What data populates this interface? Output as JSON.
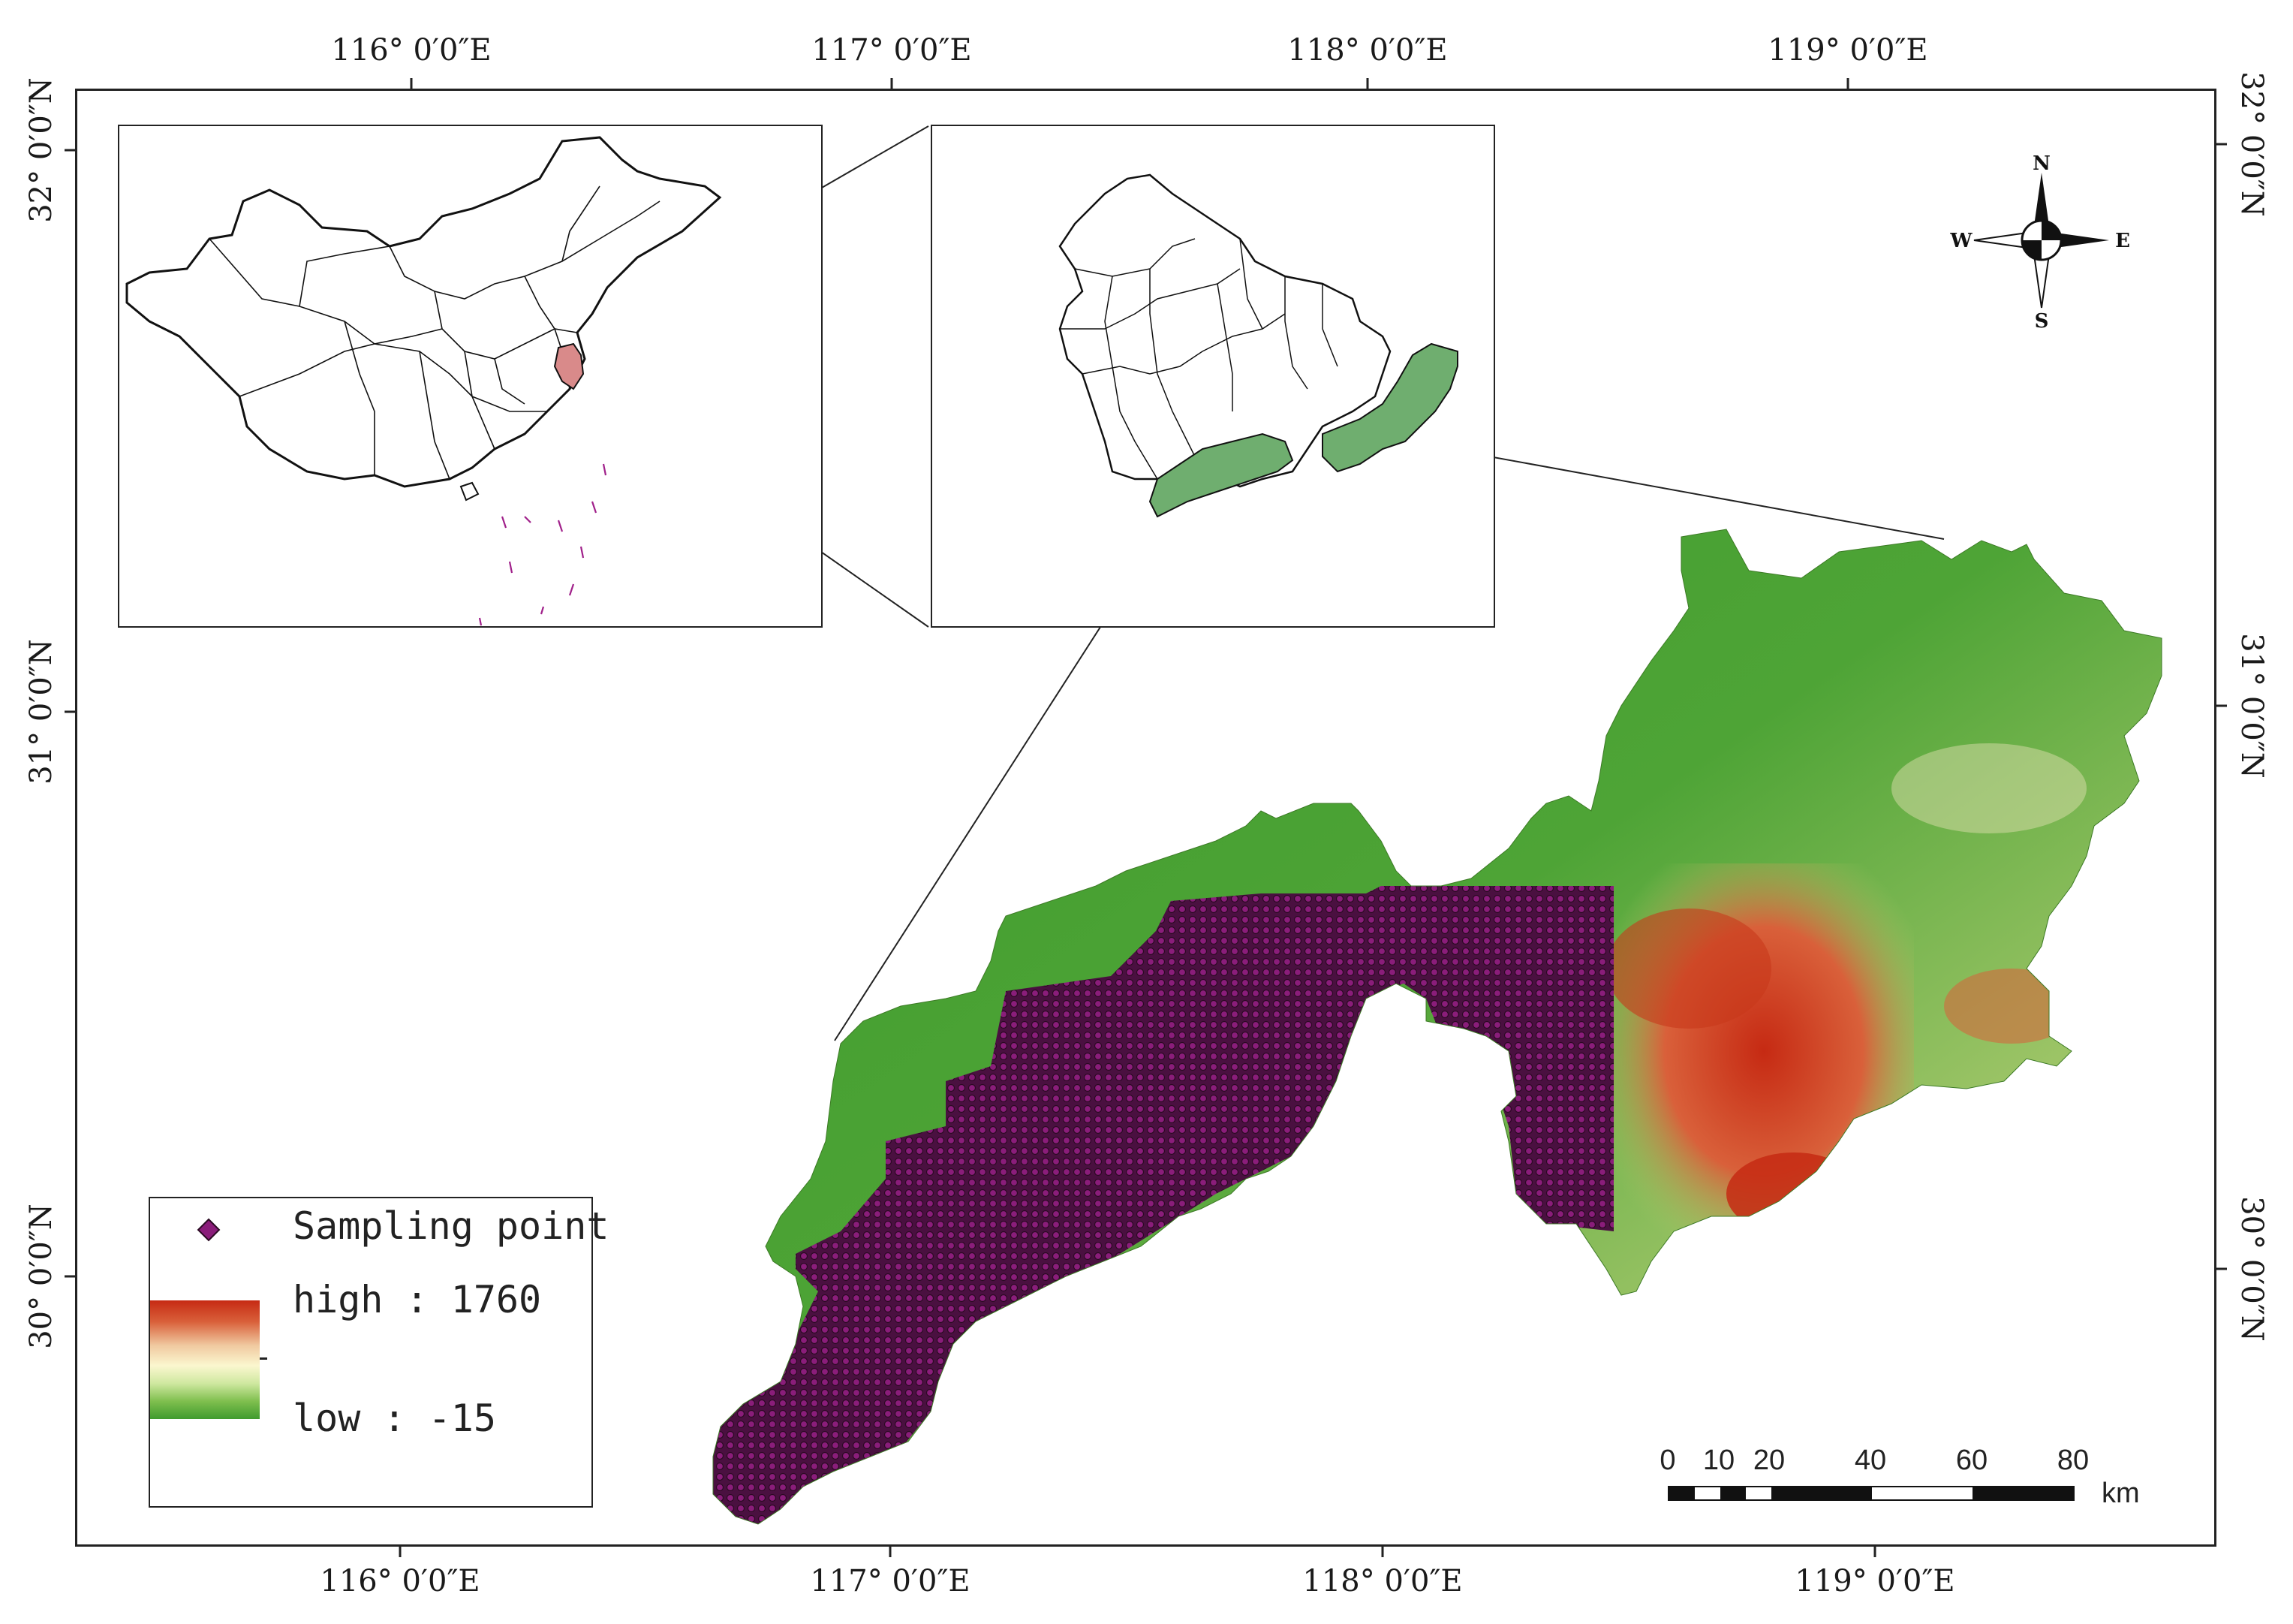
{
  "graticule": {
    "top_labels": [
      "116°  0′0″E",
      "117°  0′0″E",
      "118°  0′0″E",
      "119°  0′0″E"
    ],
    "bottom_labels": [
      "116°  0′0″E",
      "117°  0′0″E",
      "118°  0′0″E",
      "119°  0′0″E"
    ],
    "left_labels": [
      "32°  0′0″N",
      "31°  0′0″N",
      "30°  0′0″N"
    ],
    "right_labels": [
      "32°  0′0″N",
      "31°  0′0″N",
      "30°  0′0″N"
    ]
  },
  "compass": {
    "n": "N",
    "s": "S",
    "e": "E",
    "w": "W"
  },
  "legend": {
    "point_label": "Sampling point",
    "high_label": "high : 1760",
    "low_label": "low : -15"
  },
  "elevation_range": {
    "high": 1760,
    "low": -15
  },
  "scalebar": {
    "ticks": [
      "0",
      "10",
      "20",
      "40",
      "60",
      "80"
    ],
    "unit": "km"
  },
  "colors": {
    "elevation_low": "#3f9b2e",
    "elevation_mid": "#fbf7cf",
    "elevation_high": "#c62a13",
    "sampling_point": "#6b0f5c",
    "highlight_province": "#d98a8a",
    "highlight_region": "#6fae6f"
  }
}
